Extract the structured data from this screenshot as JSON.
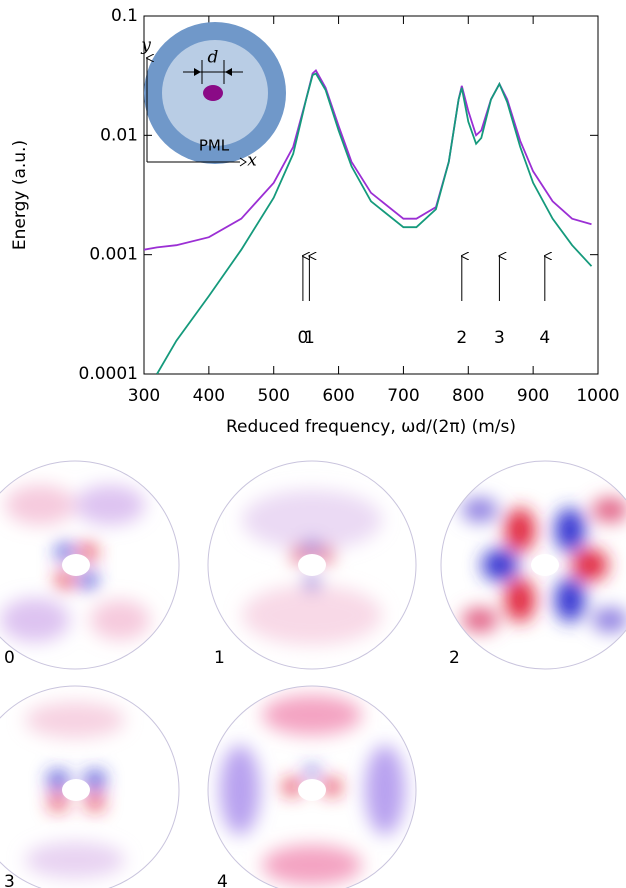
{
  "chart_data": {
    "type": "line",
    "log_y": true,
    "grid": false,
    "y_label": "Energy (a.u.)",
    "x_label": "Reduced frequency, ωd/(2π) (m/s)",
    "xlim": [
      300,
      1000
    ],
    "xticks": [
      300,
      400,
      500,
      600,
      700,
      800,
      900,
      1000
    ],
    "ylim": [
      0.0001,
      0.1
    ],
    "yticks": [
      0.0001,
      0.001,
      0.01,
      0.1
    ],
    "x": [
      300,
      320,
      350,
      400,
      450,
      500,
      530,
      550,
      560,
      565,
      580,
      600,
      620,
      650,
      700,
      720,
      750,
      770,
      785,
      790,
      800,
      812,
      820,
      835,
      848,
      860,
      880,
      900,
      930,
      960,
      990
    ],
    "series": [
      {
        "color": "#9b2fd4",
        "values": [
          0.0011,
          0.00115,
          0.0012,
          0.0014,
          0.002,
          0.004,
          0.008,
          0.02,
          0.033,
          0.035,
          0.025,
          0.012,
          0.006,
          0.0033,
          0.002,
          0.002,
          0.0025,
          0.006,
          0.02,
          0.026,
          0.016,
          0.01,
          0.011,
          0.02,
          0.027,
          0.02,
          0.009,
          0.005,
          0.0028,
          0.002,
          0.0018
        ]
      },
      {
        "color": "#159a7c",
        "values": [
          null,
          0.0001,
          0.00019,
          0.00045,
          0.0011,
          0.003,
          0.007,
          0.02,
          0.032,
          0.033,
          0.024,
          0.011,
          0.0055,
          0.0028,
          0.0017,
          0.0017,
          0.0024,
          0.006,
          0.02,
          0.025,
          0.013,
          0.0085,
          0.0095,
          0.02,
          0.027,
          0.019,
          0.008,
          0.004,
          0.002,
          0.0012,
          0.0008
        ]
      }
    ],
    "annotations": [
      {
        "text": "0",
        "x": 545
      },
      {
        "text": "1",
        "x": 555
      },
      {
        "text": "2",
        "x": 790
      },
      {
        "text": "3",
        "x": 848
      },
      {
        "text": "4",
        "x": 918
      }
    ],
    "inset": {
      "y_label": "y",
      "x_label": "x",
      "d_label": "d",
      "pml_label": "PML"
    }
  },
  "mode_maps": {
    "labels": [
      "0",
      "1",
      "2",
      "3",
      "4"
    ]
  }
}
